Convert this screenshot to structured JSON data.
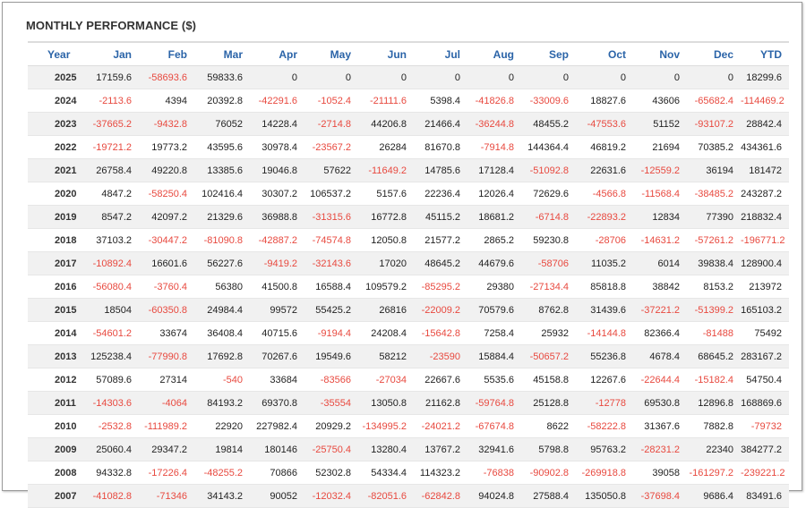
{
  "title": "MONTHLY PERFORMANCE ($)",
  "colors": {
    "header_text": "#2b64a8",
    "negative": "#e8493f",
    "row_alt": "#f1f1f1"
  },
  "columns": [
    "Year",
    "Jan",
    "Feb",
    "Mar",
    "Apr",
    "May",
    "Jun",
    "Jul",
    "Aug",
    "Sep",
    "Oct",
    "Nov",
    "Dec",
    "YTD"
  ],
  "rows": [
    {
      "year": "2025",
      "values": [
        "17159.6",
        "-58693.6",
        "59833.6",
        "0",
        "0",
        "0",
        "0",
        "0",
        "0",
        "0",
        "0",
        "0",
        "18299.6"
      ]
    },
    {
      "year": "2024",
      "values": [
        "-2113.6",
        "4394",
        "20392.8",
        "-42291.6",
        "-1052.4",
        "-21111.6",
        "5398.4",
        "-41826.8",
        "-33009.6",
        "18827.6",
        "43606",
        "-65682.4",
        "-114469.2"
      ]
    },
    {
      "year": "2023",
      "values": [
        "-37665.2",
        "-9432.8",
        "76052",
        "14228.4",
        "-2714.8",
        "44206.8",
        "21466.4",
        "-36244.8",
        "48455.2",
        "-47553.6",
        "51152",
        "-93107.2",
        "28842.4"
      ]
    },
    {
      "year": "2022",
      "values": [
        "-19721.2",
        "19773.2",
        "43595.6",
        "30978.4",
        "-23567.2",
        "26284",
        "81670.8",
        "-7914.8",
        "144364.4",
        "46819.2",
        "21694",
        "70385.2",
        "434361.6"
      ]
    },
    {
      "year": "2021",
      "values": [
        "26758.4",
        "49220.8",
        "13385.6",
        "19046.8",
        "57622",
        "-11649.2",
        "14785.6",
        "17128.4",
        "-51092.8",
        "22631.6",
        "-12559.2",
        "36194",
        "181472"
      ]
    },
    {
      "year": "2020",
      "values": [
        "4847.2",
        "-58250.4",
        "102416.4",
        "30307.2",
        "106537.2",
        "5157.6",
        "22236.4",
        "12026.4",
        "72629.6",
        "-4566.8",
        "-11568.4",
        "-38485.2",
        "243287.2"
      ]
    },
    {
      "year": "2019",
      "values": [
        "8547.2",
        "42097.2",
        "21329.6",
        "36988.8",
        "-31315.6",
        "16772.8",
        "45115.2",
        "18681.2",
        "-6714.8",
        "-22893.2",
        "12834",
        "77390",
        "218832.4"
      ]
    },
    {
      "year": "2018",
      "values": [
        "37103.2",
        "-30447.2",
        "-81090.8",
        "-42887.2",
        "-74574.8",
        "12050.8",
        "21577.2",
        "2865.2",
        "59230.8",
        "-28706",
        "-14631.2",
        "-57261.2",
        "-196771.2"
      ]
    },
    {
      "year": "2017",
      "values": [
        "-10892.4",
        "16601.6",
        "56227.6",
        "-9419.2",
        "-32143.6",
        "17020",
        "48645.2",
        "44679.6",
        "-58706",
        "11035.2",
        "6014",
        "39838.4",
        "128900.4"
      ]
    },
    {
      "year": "2016",
      "values": [
        "-56080.4",
        "-3760.4",
        "56380",
        "41500.8",
        "16588.4",
        "109579.2",
        "-85295.2",
        "29380",
        "-27134.4",
        "85818.8",
        "38842",
        "8153.2",
        "213972"
      ]
    },
    {
      "year": "2015",
      "values": [
        "18504",
        "-60350.8",
        "24984.4",
        "99572",
        "55425.2",
        "26816",
        "-22009.2",
        "70579.6",
        "8762.8",
        "31439.6",
        "-37221.2",
        "-51399.2",
        "165103.2"
      ]
    },
    {
      "year": "2014",
      "values": [
        "-54601.2",
        "33674",
        "36408.4",
        "40715.6",
        "-9194.4",
        "24208.4",
        "-15642.8",
        "7258.4",
        "25932",
        "-14144.8",
        "82366.4",
        "-81488",
        "75492"
      ]
    },
    {
      "year": "2013",
      "values": [
        "125238.4",
        "-77990.8",
        "17692.8",
        "70267.6",
        "19549.6",
        "58212",
        "-23590",
        "15884.4",
        "-50657.2",
        "55236.8",
        "4678.4",
        "68645.2",
        "283167.2"
      ]
    },
    {
      "year": "2012",
      "values": [
        "57089.6",
        "27314",
        "-540",
        "33684",
        "-83566",
        "-27034",
        "22667.6",
        "5535.6",
        "45158.8",
        "12267.6",
        "-22644.4",
        "-15182.4",
        "54750.4"
      ]
    },
    {
      "year": "2011",
      "values": [
        "-14303.6",
        "-4064",
        "84193.2",
        "69370.8",
        "-35554",
        "13050.8",
        "21162.8",
        "-59764.8",
        "25128.8",
        "-12778",
        "69530.8",
        "12896.8",
        "168869.6"
      ]
    },
    {
      "year": "2010",
      "values": [
        "-2532.8",
        "-111989.2",
        "22920",
        "227982.4",
        "20929.2",
        "-134995.2",
        "-24021.2",
        "-67674.8",
        "8622",
        "-58222.8",
        "31367.6",
        "7882.8",
        "-79732"
      ]
    },
    {
      "year": "2009",
      "values": [
        "25060.4",
        "29347.2",
        "19814",
        "180146",
        "-25750.4",
        "13280.4",
        "13767.2",
        "32941.6",
        "5798.8",
        "95763.2",
        "-28231.2",
        "22340",
        "384277.2"
      ]
    },
    {
      "year": "2008",
      "values": [
        "94332.8",
        "-17226.4",
        "-48255.2",
        "70866",
        "52302.8",
        "54334.4",
        "114323.2",
        "-76838",
        "-90902.8",
        "-269918.8",
        "39058",
        "-161297.2",
        "-239221.2"
      ]
    },
    {
      "year": "2007",
      "values": [
        "-41082.8",
        "-71346",
        "34143.2",
        "90052",
        "-12032.4",
        "-82051.6",
        "-62842.8",
        "94024.8",
        "27588.4",
        "135050.8",
        "-37698.4",
        "9686.4",
        "83491.6"
      ]
    }
  ]
}
